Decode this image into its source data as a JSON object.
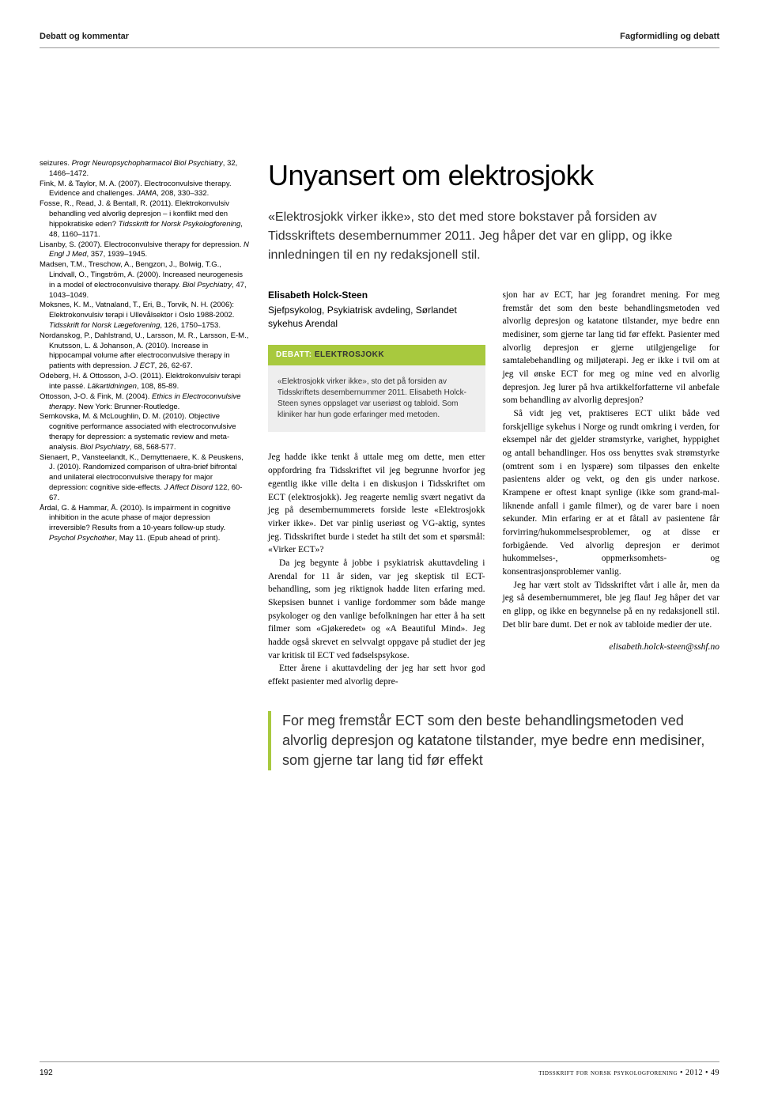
{
  "header": {
    "left": "Debatt og kommentar",
    "right": "Fagformidling og debatt"
  },
  "references": [
    "seizures. <em>Progr Neuropsychopharmacol Biol Psychiatry</em>, 32, 1466–1472.",
    "Fink, M. & Taylor, M. A. (2007). Electroconvulsive therapy. Evidence and challenges. <em>JAMA</em>, 208, 330–332.",
    "Fosse, R., Read, J. & Bentall, R. (2011). Elektrokonvulsiv behandling ved alvorlig depresjon – i konflikt med den hippokratiske eden? <em>Tidsskrift for Norsk Psykologforening</em>, 48, 1160–1171.",
    "Lisanby, S. (2007). Electroconvulsive therapy for depression. <em>N Engl J Med</em>, 357, 1939–1945.",
    "Madsen, T.M., Treschow, A., Bengzon, J., Bolwig, T.G., Lindvall, O., Tingström, A. (2000). Increased neurogenesis in a model of electroconvulsive therapy. <em>Biol Psychiatry</em>, 47, 1043–1049.",
    "Moksnes, K. M., Vatnaland, T., Eri, B., Torvik, N. H. (2006): Elektrokonvulsiv terapi i Ullevålsektor i Oslo 1988-2002. <em>Tidsskrift for Norsk Lægeforening</em>, 126, 1750–1753.",
    "Nordanskog, P., Dahlstrand, U., Larsson, M. R., Larsson, E-M., Knutsson, L. & Johanson, A. (2010). Increase in hippocampal volume after electroconvulsive therapy in patients with depression. <em>J ECT</em>, 26, 62-67.",
    "Odeberg, H. & Ottosson, J-O. (2011). Elektrokonvulsiv terapi inte passé. <em>Läkartidningen</em>, 108, 85-89.",
    "Ottosson, J-O. & Fink, M. (2004). <em>Ethics in Electroconvulsive therapy</em>. New York: Brunner-Routledge.",
    "Semkovska, M. & McLoughlin, D. M. (2010). Objective cognitive performance associated with electroconvulsive therapy for depression: a systematic review and meta-analysis. <em>Biol Psychiatry</em>, 68, 568-577.",
    "Sienaert, P., Vansteelandt, K., Demyttenaere, K. & Peuskens, J. (2010). Randomized comparison of ultra-brief bifrontal and unilateral electroconvulsive therapy for major depression: cognitive side-effects. <em>J Affect Disord</em> 122, 60-67.",
    "Årdal, G. & Hammar, Å. (2010). Is impairment in cognitive inhibition in the acute phase of major depression irreversible? Results from a 10-years follow-up study. <em>Psychol Psychother</em>, May 11. (Epub ahead of print)."
  ],
  "article": {
    "title": "Unyansert om elektrosjokk",
    "lead": "«Elektrosjokk virker ikke», sto det med store bokstaver på forsiden av Tidsskriftets desembernummer 2011. Jeg håper det var en glipp, og ikke innledningen til en ny redaksjonell stil.",
    "author_name": "Elisabeth Holck-Steen",
    "author_title": "Sjefpsykolog, Psykiatrisk avdeling, Sørlandet sykehus Arendal",
    "debate_label": "DEBATT:",
    "debate_topic": "ELEKTROSJOKK",
    "summary": "«Elektrosjokk virker ikke», sto det på forsiden av Tidsskriftets desembernummer 2011. Elisabeth Holck-Steen synes oppslaget var useriøst og tabloid. Som kliniker har hun gode erfaringer med metoden.",
    "col1": [
      "Jeg hadde ikke tenkt å uttale meg om dette, men etter oppfordring fra Tidsskriftet vil jeg begrunne hvorfor jeg egentlig ikke ville delta i en diskusjon i Tidsskriftet om ECT (elektrosjokk). Jeg reagerte nemlig svært negativt da jeg på desembernummerets forside leste «Elektrosjokk virker ikke». Det var pinlig useriøst og VG-aktig, syntes jeg. Tidsskriftet burde i stedet ha stilt det som et spørsmål: «Virker ECT»?",
      "Da jeg begynte å jobbe i psykiatrisk akuttavdeling i Arendal for 11 år siden, var jeg skeptisk til ECT-behandling, som jeg riktignok hadde liten erfaring med. Skepsisen bunnet i vanlige fordommer som både mange psykologer og den vanlige befolkningen har etter å ha sett filmer som «Gjøkeredet» og «A Beautiful Mind». Jeg hadde også skrevet en selvvalgt oppgave på studiet der jeg var kritisk til ECT ved fødselspsykose.",
      "Etter årene i akuttavdeling der jeg har sett hvor god effekt pasienter med alvorlig depre-"
    ],
    "col2": [
      "sjon har av ECT, har jeg forandret mening. For meg fremstår det som den beste behandlingsmetoden ved alvorlig depresjon og katatone tilstander, mye bedre enn medisiner, som gjerne tar lang tid før effekt. Pasienter med alvorlig depresjon er gjerne utilgjengelige for samtalebehandling og miljøterapi. Jeg er ikke i tvil om at jeg vil ønske ECT for meg og mine ved en alvorlig depresjon. Jeg lurer på hva artikkelforfatterne vil anbefale som behandling av alvorlig depresjon?",
      "Så vidt jeg vet, praktiseres ECT ulikt både ved forskjellige sykehus i Norge og rundt omkring i verden, for eksempel når det gjelder strømstyrke, varighet, hyppighet og antall behandlinger. Hos oss benyttes svak strømstyrke (omtrent som i en lyspære) som tilpasses den enkelte pasientens alder og vekt, og den gis under narkose. Krampene er oftest knapt synlige (ikke som grand-mal-liknende anfall i gamle filmer), og de varer bare i noen sekunder. Min erfaring er at et fåtall av pasientene får forvirring/hukommelsesproblemer, og at disse er forbigående. Ved alvorlig depresjon er derimot hukommelses-, oppmerksomhets- og konsentrasjonsproblemer vanlig.",
      "Jeg har vært stolt av Tidsskriftet vårt i alle år, men da jeg så desembernummeret, ble jeg flau! Jeg håper det var en glipp, og ikke en begynnelse på en ny redaksjonell stil. Det blir bare dumt. Det er nok av tabloide medier der ute."
    ],
    "email": "elisabeth.holck-steen@sshf.no",
    "pullquote": "For meg fremstår ECT som den beste behandlingsmetoden ved alvorlig depresjon og katatone tilstander, mye bedre enn medisiner, som gjerne tar lang tid før effekt"
  },
  "footer": {
    "page": "192",
    "journal": "tidsskrift for norsk psykologforening • 2012 • 49"
  }
}
